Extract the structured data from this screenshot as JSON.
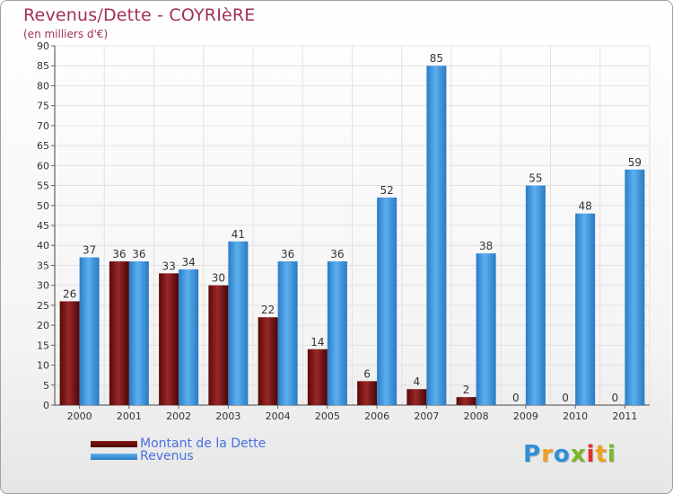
{
  "chart_data": {
    "type": "bar",
    "title": "Revenus/Dette - COYRIèRE",
    "subtitle": "(en milliers d'€)",
    "categories": [
      "2000",
      "2001",
      "2002",
      "2003",
      "2004",
      "2005",
      "2006",
      "2007",
      "2008",
      "2009",
      "2010",
      "2011"
    ],
    "series": [
      {
        "name": "Montant de la Dette",
        "color": "#7a1010",
        "values": [
          26,
          36,
          33,
          30,
          22,
          14,
          6,
          4,
          2,
          0,
          0,
          0
        ]
      },
      {
        "name": "Revenus",
        "color": "#3d98e0",
        "values": [
          37,
          36,
          34,
          41,
          36,
          36,
          52,
          85,
          38,
          55,
          48,
          59
        ]
      }
    ],
    "ylim": [
      0,
      90
    ],
    "yticks": [
      0,
      5,
      10,
      15,
      20,
      25,
      30,
      35,
      40,
      45,
      50,
      55,
      60,
      65,
      70,
      75,
      80,
      85,
      90
    ],
    "grid": true,
    "legend_position": "bottom-left"
  },
  "logo": {
    "letters": [
      "P",
      "r",
      "o",
      "x",
      "i",
      "t",
      "i"
    ],
    "colors": [
      "#2e8fd6",
      "#f0a020",
      "#2e8fd6",
      "#7ab828",
      "#e03030",
      "#f0a020",
      "#7ab828"
    ]
  }
}
